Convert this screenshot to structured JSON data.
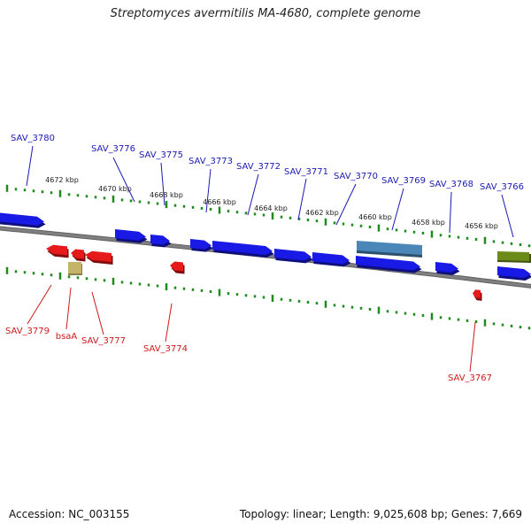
{
  "title": "Streptomyces avermitilis MA-4680, complete genome",
  "footer": {
    "accession": "Accession: NC_003155",
    "summary": "Topology: linear; Length: 9,025,608 bp; Genes: 7,669"
  },
  "colors": {
    "forward_gene": "#1a1ae6",
    "reverse_gene": "#e61a1a",
    "forward_label": "#1a1ab3",
    "reverse_label": "#cc1a1a",
    "rna_gene": "#4a86b8",
    "olive_gene": "#6b8a1a",
    "tan_gene": "#c4b46a",
    "tick": "#1f8a1f",
    "backbone": "#808080"
  },
  "chart_data": {
    "type": "genome-map",
    "scale_labels": [
      "4672 kbp",
      "4670 kbp",
      "4668 kbp",
      "4666 kbp",
      "4664 kbp",
      "4662 kbp",
      "4660 kbp",
      "4658 kbp",
      "4656 kbp"
    ],
    "forward_gene_labels": [
      "SAV_3780",
      "SAV_3776",
      "SAV_3775",
      "SAV_3773",
      "SAV_3772",
      "SAV_3771",
      "SAV_3770",
      "SAV_3769",
      "SAV_3768",
      "SAV_3766"
    ],
    "reverse_gene_labels": [
      "SAV_3779",
      "bsaA",
      "SAV_3777",
      "SAV_3774",
      "SAV_3767"
    ]
  }
}
